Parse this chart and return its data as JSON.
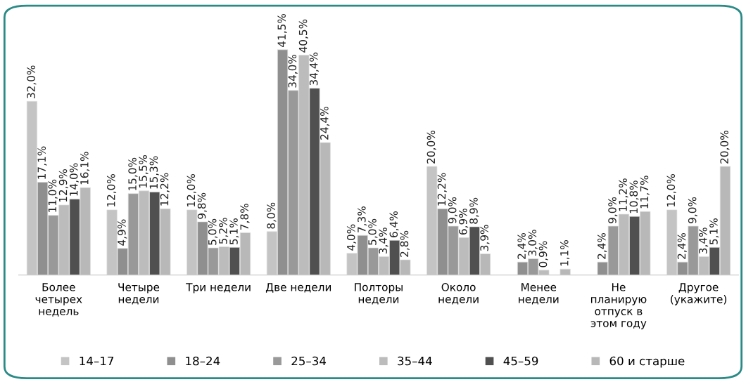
{
  "chart_data": {
    "type": "bar",
    "categories": [
      "Более\nчетырех\nнедель",
      "Четыре\nнедели",
      "Три недели",
      "Две недели",
      "Полторы\nнедели",
      "Около\nнедели",
      "Менее\nнедели",
      "Не\nпланирую\nотпуск в\nэтом году",
      "Другое\n(укажите)"
    ],
    "series": [
      {
        "name": "14–17",
        "color": "#c4c4c4",
        "values": [
          32.0,
          12.0,
          12.0,
          8.0,
          4.0,
          20.0,
          null,
          null,
          12.0
        ],
        "value_labels": [
          "32,0%",
          "12,0%",
          "12,0%",
          "8,0%",
          "4,0%",
          "20,0%",
          null,
          null,
          "12,0%"
        ]
      },
      {
        "name": "18–24",
        "color": "#8f8f8f",
        "values": [
          17.1,
          4.9,
          9.8,
          41.5,
          7.3,
          12.2,
          2.4,
          2.4,
          2.4
        ],
        "value_labels": [
          "17,1%",
          "4,9%",
          "9,8%",
          "41,5%",
          "7,3%",
          "12,2%",
          "2,4%",
          "2,4%",
          "2,4%"
        ]
      },
      {
        "name": "25–34",
        "color": "#999999",
        "values": [
          11.0,
          15.0,
          5.0,
          34.0,
          5.0,
          9.0,
          3.0,
          9.0,
          9.0
        ],
        "value_labels": [
          "11,0%",
          "15,0%",
          "5,0%",
          "34,0%",
          "5,0%",
          "9,0%",
          "3,0%",
          "9,0%",
          "9,0%"
        ]
      },
      {
        "name": "35–44",
        "color": "#bcbcbc",
        "values": [
          12.9,
          15.5,
          5.2,
          40.5,
          3.4,
          6.9,
          0.9,
          11.2,
          3.4
        ],
        "value_labels": [
          "12,9%",
          "15,5%",
          "5,2%",
          "40,5%",
          "3,4%",
          "6,9%",
          "0,9%",
          "11,2%",
          "3,4%"
        ]
      },
      {
        "name": "45–59",
        "color": "#505050",
        "values": [
          14.0,
          15.3,
          5.1,
          34.4,
          6.4,
          8.9,
          null,
          10.8,
          5.1
        ],
        "value_labels": [
          "14,0%",
          "15,3%",
          "5,1%",
          "34,4%",
          "6,4%",
          "8,9%",
          null,
          "10,8%",
          "5,1%"
        ]
      },
      {
        "name": "60 и старше",
        "color": "#b8b8b8",
        "values": [
          16.1,
          12.2,
          7.8,
          24.4,
          2.8,
          3.9,
          1.1,
          11.7,
          20.0
        ],
        "value_labels": [
          "16,1%",
          "12,2%",
          "7,8%",
          "24,4%",
          "2,8%",
          "3,9%",
          "1,1%",
          "11,7%",
          "20,0%"
        ]
      }
    ],
    "legend": "bottom",
    "grid": false
  }
}
